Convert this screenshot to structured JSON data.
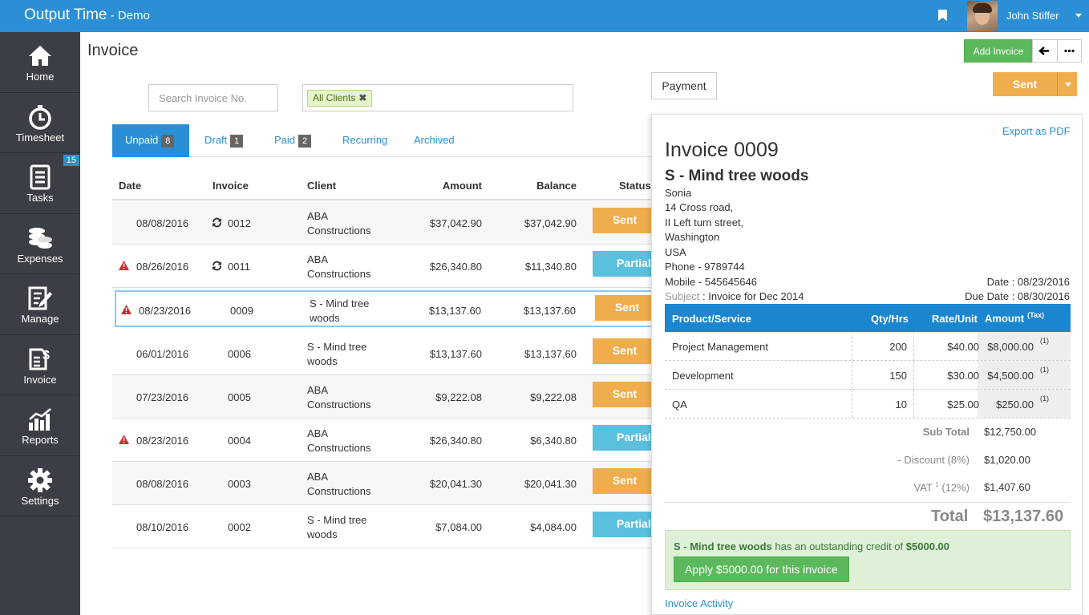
{
  "app": {
    "title": "Output Time",
    "subtitle": "Demo"
  },
  "user": {
    "name": "John Stiffer"
  },
  "sidebar": {
    "items": [
      {
        "label": "Home",
        "icon": "home-icon"
      },
      {
        "label": "Timesheet",
        "icon": "stopwatch-icon"
      },
      {
        "label": "Tasks",
        "icon": "tasks-icon",
        "badge": "15"
      },
      {
        "label": "Expenses",
        "icon": "coins-icon"
      },
      {
        "label": "Manage",
        "icon": "edit-icon"
      },
      {
        "label": "Invoice",
        "icon": "invoice-icon"
      },
      {
        "label": "Reports",
        "icon": "chart-icon"
      },
      {
        "label": "Settings",
        "icon": "gear-icon"
      }
    ]
  },
  "page": {
    "title": "Invoice"
  },
  "search": {
    "placeholder": "Search Invoice No."
  },
  "filter": {
    "tag": "All Clients",
    "remove": "✖"
  },
  "tabs": [
    {
      "label": "Unpaid",
      "count": "8"
    },
    {
      "label": "Draft",
      "count": "1"
    },
    {
      "label": "Paid",
      "count": "2"
    },
    {
      "label": "Recurring"
    },
    {
      "label": "Archived"
    }
  ],
  "table": {
    "headers": {
      "date": "Date",
      "invoice": "Invoice",
      "client": "Client",
      "amount": "Amount",
      "balance": "Balance",
      "status": "Status"
    },
    "rows": [
      {
        "date": "08/08/2016",
        "invoice": "0012",
        "client1": "ABA",
        "client2": "Constructions",
        "amount": "$37,042.90",
        "balance": "$37,042.90",
        "status": "Sent"
      },
      {
        "date": "08/26/2016",
        "invoice": "0011",
        "client1": "ABA",
        "client2": "Constructions",
        "amount": "$26,340.80",
        "balance": "$11,340.80",
        "status": "Partial"
      },
      {
        "date": "08/23/2016",
        "invoice": "0009",
        "client1": "S - Mind tree",
        "client2": "woods",
        "amount": "$13,137.60",
        "balance": "$13,137.60",
        "status": "Sent"
      },
      {
        "date": "06/01/2016",
        "invoice": "0006",
        "client1": "S - Mind tree",
        "client2": "woods",
        "amount": "$13,137.60",
        "balance": "$13,137.60",
        "status": "Sent"
      },
      {
        "date": "07/23/2016",
        "invoice": "0005",
        "client1": "ABA",
        "client2": "Constructions",
        "amount": "$9,222.08",
        "balance": "$9,222.08",
        "status": "Sent"
      },
      {
        "date": "08/23/2016",
        "invoice": "0004",
        "client1": "ABA",
        "client2": "Constructions",
        "amount": "$26,340.80",
        "balance": "$6,340.80",
        "status": "Partial"
      },
      {
        "date": "08/08/2016",
        "invoice": "0003",
        "client1": "ABA",
        "client2": "Constructions",
        "amount": "$20,041.30",
        "balance": "$20,041.30",
        "status": "Sent"
      },
      {
        "date": "08/10/2016",
        "invoice": "0002",
        "client1": "S - Mind tree",
        "client2": "woods",
        "amount": "$7,084.00",
        "balance": "$4,084.00",
        "status": "Partial"
      }
    ]
  },
  "actions": {
    "add_invoice": "Add Invoice",
    "payment": "Payment",
    "sent": "Sent"
  },
  "detail": {
    "export": "Export as PDF",
    "title": "Invoice 0009",
    "client": "S - Mind tree woods",
    "address": [
      "Sonia",
      "14 Cross road,",
      "II Left turn street,",
      "Washington",
      "USA",
      "Phone - 9789744",
      "Mobile - 545645646"
    ],
    "subject_key": "Subject",
    "subject_val": ": Invoice for Dec 2014",
    "date": "Date : 08/23/2016",
    "due_date": "Due Date : 08/30/2016",
    "items_head": {
      "product": "Product/Service",
      "qty": "Qty/Hrs",
      "rate": "Rate/Unit",
      "amount": "Amount",
      "tax": "(Tax)"
    },
    "items": [
      {
        "name": "Project Management",
        "qty": "200",
        "rate": "$40.00",
        "amount": "$8,000.00",
        "tax": "(1)"
      },
      {
        "name": "Development",
        "qty": "150",
        "rate": "$30.00",
        "amount": "$4,500.00",
        "tax": "(1)"
      },
      {
        "name": "QA",
        "qty": "10",
        "rate": "$25.00",
        "amount": "$250.00",
        "tax": "(1)"
      }
    ],
    "subtotal_label": "Sub Total",
    "subtotal": "$12,750.00",
    "discount_label": "- Discount (8%)",
    "discount": "$1,020.00",
    "vat_label": "VAT",
    "vat_sup": "1",
    "vat_pct": "(12%)",
    "vat": "$1,407.60",
    "total_label": "Total",
    "total": "$13,137.60",
    "credit_client": "S - Mind tree woods",
    "credit_text": "has an outstanding credit of",
    "credit_amount": "$5000.00",
    "apply": "Apply $5000.00 for this invoice",
    "activity": "Invoice Activity"
  }
}
